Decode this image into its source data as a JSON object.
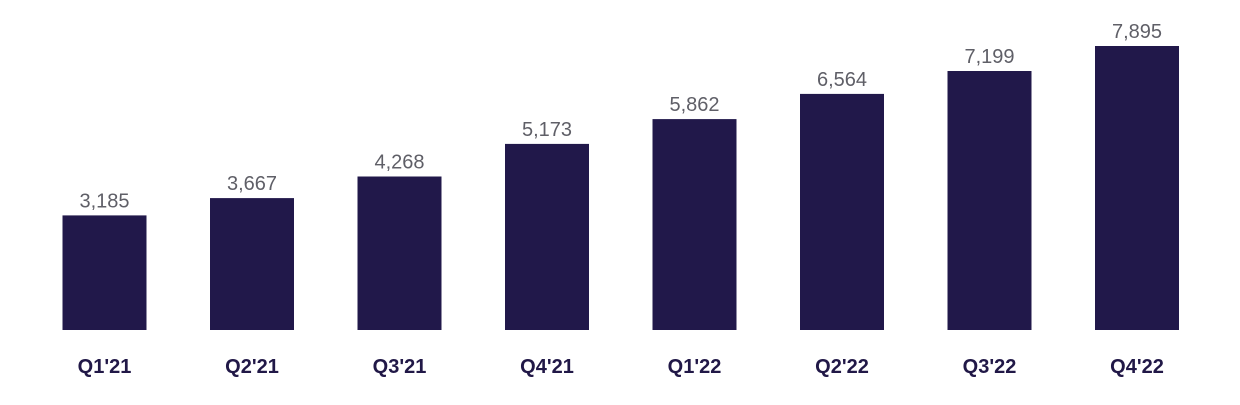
{
  "chart_data": {
    "type": "bar",
    "categories": [
      "Q1'21",
      "Q2'21",
      "Q3'21",
      "Q4'21",
      "Q1'22",
      "Q2'22",
      "Q3'22",
      "Q4'22"
    ],
    "values": [
      3185,
      3667,
      4268,
      5173,
      5862,
      6564,
      7199,
      7895
    ],
    "value_labels": [
      "3,185",
      "3,667",
      "4,268",
      "5,173",
      "5,862",
      "6,564",
      "7,199",
      "7,895"
    ],
    "title": "",
    "xlabel": "",
    "ylabel": "",
    "grid": false,
    "legend": "none",
    "colors": {
      "bar": "#21184a",
      "value_label": "#5f5f67",
      "category_label": "#211847"
    }
  }
}
